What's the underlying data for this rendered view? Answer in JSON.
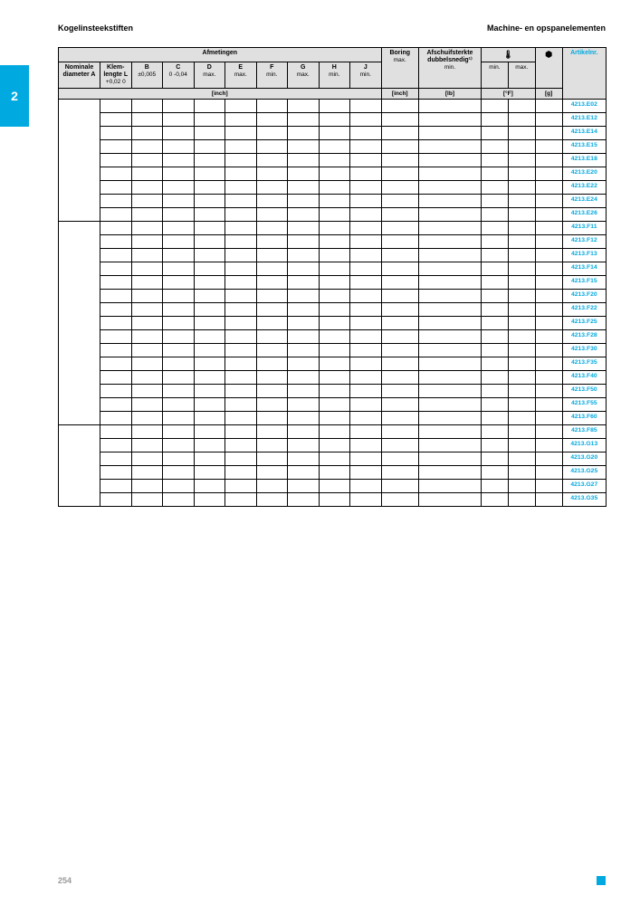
{
  "header": {
    "left": "Kogelinsteekstiften",
    "right": "Machine- en opspanelementen"
  },
  "side_tab": "2",
  "page_number": "254",
  "table": {
    "group_header_dims": "Afmetingen",
    "cols": {
      "nominal": {
        "title": "Nominale diameter A",
        "sub": ""
      },
      "klem": {
        "title": "Klem-lengte L",
        "sub": "+0,02 0"
      },
      "B": {
        "title": "B",
        "sub": "±0,005"
      },
      "C": {
        "title": "C",
        "sub": "0 -0,04"
      },
      "D": {
        "title": "D",
        "sub": "max."
      },
      "E": {
        "title": "E",
        "sub": "max."
      },
      "F": {
        "title": "F",
        "sub": "min."
      },
      "G": {
        "title": "G",
        "sub": "max."
      },
      "H": {
        "title": "H",
        "sub": "min."
      },
      "J": {
        "title": "J",
        "sub": "min."
      },
      "boring": {
        "title": "Boring",
        "sub": "max."
      },
      "afs": {
        "title": "Afschuifsterkte dubbelsnedig¹⁾",
        "sub": "min."
      },
      "temp": {
        "icon": "temp",
        "sub_min": "min.",
        "sub_max": "max."
      },
      "weight": {
        "icon": "weight"
      },
      "art": {
        "title": "Artikelnr."
      }
    },
    "unit_row": {
      "dims_unit": "[inch]",
      "boring_unit": "[inch]",
      "afs_unit": "[lb]",
      "temp_unit": "[°F]",
      "weight_unit": "[g]"
    },
    "groups": [
      {
        "rowspan": 9,
        "articles": [
          "4213.E02",
          "4213.E12",
          "4213.E14",
          "4213.E15",
          "4213.E18",
          "4213.E20",
          "4213.E22",
          "4213.E24",
          "4213.E26"
        ]
      },
      {
        "rowspan": 15,
        "articles": [
          "4213.F11",
          "4213.F12",
          "4213.F13",
          "4213.F14",
          "4213.F15",
          "4213.F20",
          "4213.F22",
          "4213.F25",
          "4213.F28",
          "4213.F30",
          "4213.F35",
          "4213.F40",
          "4213.F50",
          "4213.F55",
          "4213.F60"
        ]
      },
      {
        "rowspan": 6,
        "articles": [
          "4213.F85",
          "4213.G13",
          "4213.G20",
          "4213.G25",
          "4213.G27",
          "4213.G35"
        ]
      }
    ]
  },
  "colors": {
    "accent": "#00a9e0",
    "header_bg": "#e0e0e0",
    "border": "#000000",
    "page_num": "#999999"
  }
}
